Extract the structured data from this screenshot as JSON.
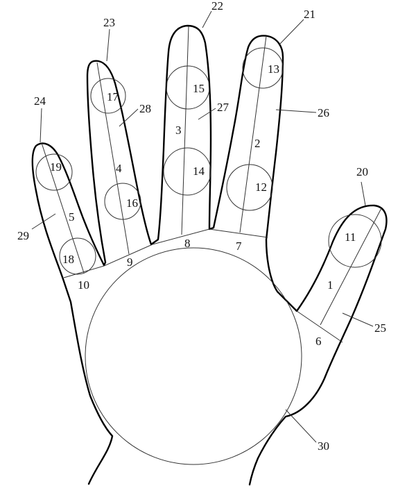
{
  "labels": {
    "l1": "1",
    "l2": "2",
    "l3": "3",
    "l4": "4",
    "l5": "5",
    "l6": "6",
    "l7": "7",
    "l8": "8",
    "l9": "9",
    "l10": "10",
    "l11": "11",
    "l12": "12",
    "l13": "13",
    "l14": "14",
    "l15": "15",
    "l16": "16",
    "l17": "17",
    "l18": "18",
    "l19": "19",
    "l20": "20",
    "l21": "21",
    "l22": "22",
    "l23": "23",
    "l24": "24",
    "l25": "25",
    "l26": "26",
    "l27": "27",
    "l28": "28",
    "l29": "29",
    "l30": "30"
  },
  "colors": {
    "outline": "#000000",
    "guide": "#333333",
    "background": "#ffffff"
  }
}
